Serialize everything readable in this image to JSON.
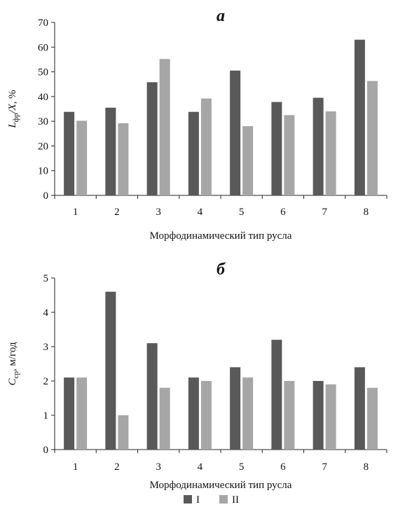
{
  "chart_data": [
    {
      "type": "bar",
      "panel_label": "a",
      "ylabel_parts": {
        "main1": "L",
        "sub1": "фр",
        "mid": "/X",
        "suffix": ", %"
      },
      "xlabel": "Морфодинамический тип русла",
      "categories": [
        "1",
        "2",
        "3",
        "4",
        "5",
        "6",
        "7",
        "8"
      ],
      "ylim": [
        0,
        70
      ],
      "yticks": [
        0,
        10,
        20,
        30,
        40,
        50,
        60,
        70
      ],
      "grid": false,
      "series": [
        {
          "name": "I",
          "color": "#595959",
          "values": [
            33.8,
            35.5,
            45.8,
            33.8,
            50.5,
            37.8,
            39.5,
            63.0
          ]
        },
        {
          "name": "II",
          "color": "#a6a6a6",
          "values": [
            30.2,
            29.2,
            55.2,
            39.2,
            28.0,
            32.5,
            34.0,
            46.3
          ]
        }
      ]
    },
    {
      "type": "bar",
      "panel_label": "б",
      "ylabel_parts": {
        "main1": "C",
        "sub1": "ср",
        "mid": "",
        "suffix": ", м/год"
      },
      "xlabel": "Морфодинамический тип русла",
      "categories": [
        "1",
        "2",
        "3",
        "4",
        "5",
        "6",
        "7",
        "8"
      ],
      "ylim": [
        0,
        5
      ],
      "yticks": [
        0,
        1,
        2,
        3,
        4,
        5
      ],
      "grid": false,
      "series": [
        {
          "name": "I",
          "color": "#595959",
          "values": [
            2.1,
            4.6,
            3.1,
            2.1,
            2.4,
            3.2,
            2.0,
            2.4
          ]
        },
        {
          "name": "II",
          "color": "#a6a6a6",
          "values": [
            2.1,
            1.0,
            1.8,
            2.0,
            2.1,
            2.0,
            1.9,
            1.8
          ]
        }
      ]
    }
  ],
  "legend": {
    "position": "bottom",
    "items": [
      {
        "label": "I",
        "color": "#595959"
      },
      {
        "label": "II",
        "color": "#a6a6a6"
      }
    ]
  }
}
